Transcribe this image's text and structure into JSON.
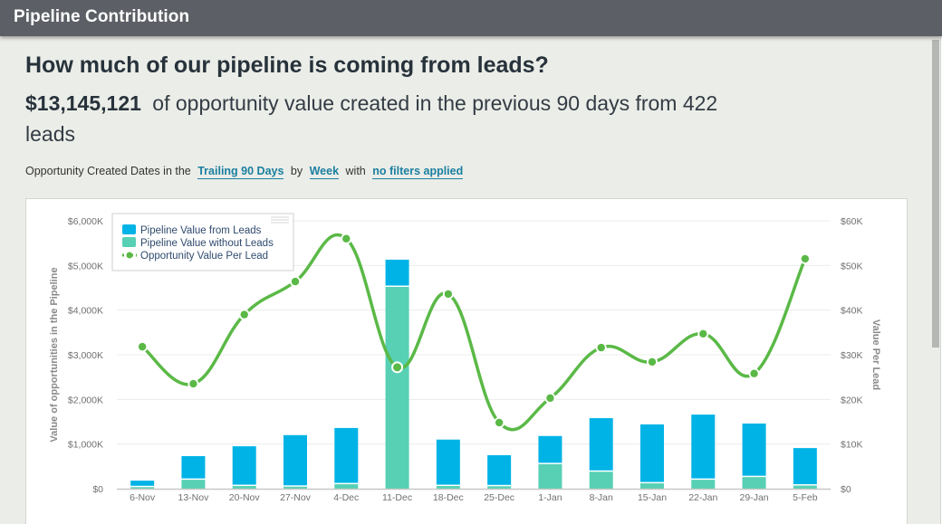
{
  "window": {
    "title": "Pipeline Contribution"
  },
  "header": {
    "question": "How much of our pipeline is coming from leads?",
    "amount": "$13,145,121",
    "summary_text": "of opportunity value created in the previous 90 days from 422 leads"
  },
  "filters": {
    "prefix": "Opportunity Created Dates in the",
    "period_link": "Trailing 90 Days",
    "by_text": "by",
    "granularity_link": "Week",
    "with_text": "with",
    "filters_link": "no filters applied"
  },
  "chart_data": {
    "type": "bar",
    "stacked": true,
    "title": "",
    "categories": [
      "6-Nov",
      "13-Nov",
      "20-Nov",
      "27-Nov",
      "4-Dec",
      "11-Dec",
      "18-Dec",
      "25-Dec",
      "1-Jan",
      "8-Jan",
      "15-Jan",
      "22-Jan",
      "29-Jan",
      "5-Feb"
    ],
    "series": [
      {
        "name": "Pipeline Value without Leads",
        "type": "bar",
        "axis": "left",
        "color": "#57d0b4",
        "values": [
          35,
          200,
          60,
          45,
          100,
          4520,
          60,
          55,
          550,
          380,
          120,
          200,
          260,
          70
        ]
      },
      {
        "name": "Pipeline Value from Leads",
        "type": "bar",
        "axis": "left",
        "color": "#00b3e6",
        "values": [
          145,
          530,
          890,
          1155,
          1260,
          610,
          1040,
          695,
          630,
          1200,
          1320,
          1460,
          1200,
          840
        ]
      },
      {
        "name": "Opportunity Value Per Lead",
        "type": "line",
        "axis": "right",
        "color": "#5ab946",
        "values": [
          31.8,
          23.5,
          39.0,
          46.4,
          56.0,
          27.2,
          43.6,
          14.8,
          20.3,
          31.6,
          28.4,
          34.7,
          25.8,
          51.5
        ]
      }
    ],
    "legend_order": [
      "Pipeline Value from Leads",
      "Pipeline Value without Leads",
      "Opportunity Value Per Lead"
    ],
    "legend_position": "top-left",
    "highlighted_point": {
      "series": "Opportunity Value Per Lead",
      "category": "11-Dec"
    },
    "ylabel": "Value of opportunities in the Pipeline",
    "ylim": [
      0,
      6000
    ],
    "yticks": [
      0,
      1000,
      2000,
      3000,
      4000,
      5000,
      6000
    ],
    "ytick_labels": [
      "$0",
      "$1,000K",
      "$2,000K",
      "$3,000K",
      "$4,000K",
      "$5,000K",
      "$6,000K"
    ],
    "y2label": "Value Per Lead",
    "y2lim": [
      0,
      60
    ],
    "y2ticks": [
      0,
      10,
      20,
      30,
      40,
      50,
      60
    ],
    "y2tick_labels": [
      "$0",
      "$10K",
      "$20K",
      "$30K",
      "$40K",
      "$50K",
      "$60K"
    ],
    "grid": true
  }
}
